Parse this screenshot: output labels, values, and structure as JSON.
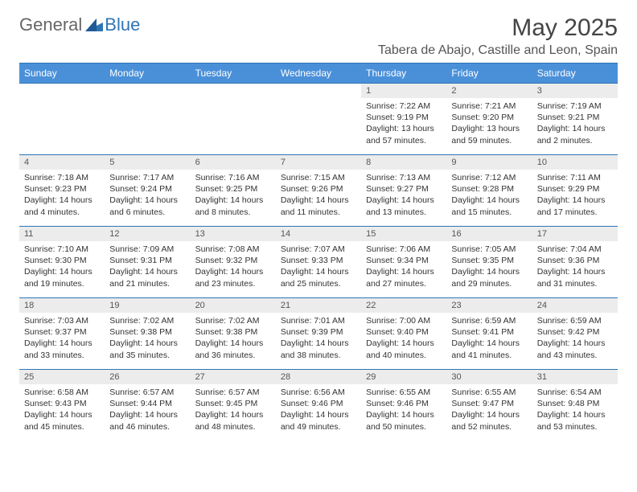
{
  "logo": {
    "general": "General",
    "blue": "Blue"
  },
  "title": "May 2025",
  "location": "Tabera de Abajo, Castille and Leon, Spain",
  "day_names": [
    "Sunday",
    "Monday",
    "Tuesday",
    "Wednesday",
    "Thursday",
    "Friday",
    "Saturday"
  ],
  "colors": {
    "header_bg": "#4a90d9",
    "border": "#2e75b6",
    "daynum_bg": "#ececec",
    "text": "#333333"
  },
  "weeks": [
    [
      null,
      null,
      null,
      null,
      {
        "n": "1",
        "sr": "Sunrise: 7:22 AM",
        "ss": "Sunset: 9:19 PM",
        "dl": "Daylight: 13 hours and 57 minutes."
      },
      {
        "n": "2",
        "sr": "Sunrise: 7:21 AM",
        "ss": "Sunset: 9:20 PM",
        "dl": "Daylight: 13 hours and 59 minutes."
      },
      {
        "n": "3",
        "sr": "Sunrise: 7:19 AM",
        "ss": "Sunset: 9:21 PM",
        "dl": "Daylight: 14 hours and 2 minutes."
      }
    ],
    [
      {
        "n": "4",
        "sr": "Sunrise: 7:18 AM",
        "ss": "Sunset: 9:23 PM",
        "dl": "Daylight: 14 hours and 4 minutes."
      },
      {
        "n": "5",
        "sr": "Sunrise: 7:17 AM",
        "ss": "Sunset: 9:24 PM",
        "dl": "Daylight: 14 hours and 6 minutes."
      },
      {
        "n": "6",
        "sr": "Sunrise: 7:16 AM",
        "ss": "Sunset: 9:25 PM",
        "dl": "Daylight: 14 hours and 8 minutes."
      },
      {
        "n": "7",
        "sr": "Sunrise: 7:15 AM",
        "ss": "Sunset: 9:26 PM",
        "dl": "Daylight: 14 hours and 11 minutes."
      },
      {
        "n": "8",
        "sr": "Sunrise: 7:13 AM",
        "ss": "Sunset: 9:27 PM",
        "dl": "Daylight: 14 hours and 13 minutes."
      },
      {
        "n": "9",
        "sr": "Sunrise: 7:12 AM",
        "ss": "Sunset: 9:28 PM",
        "dl": "Daylight: 14 hours and 15 minutes."
      },
      {
        "n": "10",
        "sr": "Sunrise: 7:11 AM",
        "ss": "Sunset: 9:29 PM",
        "dl": "Daylight: 14 hours and 17 minutes."
      }
    ],
    [
      {
        "n": "11",
        "sr": "Sunrise: 7:10 AM",
        "ss": "Sunset: 9:30 PM",
        "dl": "Daylight: 14 hours and 19 minutes."
      },
      {
        "n": "12",
        "sr": "Sunrise: 7:09 AM",
        "ss": "Sunset: 9:31 PM",
        "dl": "Daylight: 14 hours and 21 minutes."
      },
      {
        "n": "13",
        "sr": "Sunrise: 7:08 AM",
        "ss": "Sunset: 9:32 PM",
        "dl": "Daylight: 14 hours and 23 minutes."
      },
      {
        "n": "14",
        "sr": "Sunrise: 7:07 AM",
        "ss": "Sunset: 9:33 PM",
        "dl": "Daylight: 14 hours and 25 minutes."
      },
      {
        "n": "15",
        "sr": "Sunrise: 7:06 AM",
        "ss": "Sunset: 9:34 PM",
        "dl": "Daylight: 14 hours and 27 minutes."
      },
      {
        "n": "16",
        "sr": "Sunrise: 7:05 AM",
        "ss": "Sunset: 9:35 PM",
        "dl": "Daylight: 14 hours and 29 minutes."
      },
      {
        "n": "17",
        "sr": "Sunrise: 7:04 AM",
        "ss": "Sunset: 9:36 PM",
        "dl": "Daylight: 14 hours and 31 minutes."
      }
    ],
    [
      {
        "n": "18",
        "sr": "Sunrise: 7:03 AM",
        "ss": "Sunset: 9:37 PM",
        "dl": "Daylight: 14 hours and 33 minutes."
      },
      {
        "n": "19",
        "sr": "Sunrise: 7:02 AM",
        "ss": "Sunset: 9:38 PM",
        "dl": "Daylight: 14 hours and 35 minutes."
      },
      {
        "n": "20",
        "sr": "Sunrise: 7:02 AM",
        "ss": "Sunset: 9:38 PM",
        "dl": "Daylight: 14 hours and 36 minutes."
      },
      {
        "n": "21",
        "sr": "Sunrise: 7:01 AM",
        "ss": "Sunset: 9:39 PM",
        "dl": "Daylight: 14 hours and 38 minutes."
      },
      {
        "n": "22",
        "sr": "Sunrise: 7:00 AM",
        "ss": "Sunset: 9:40 PM",
        "dl": "Daylight: 14 hours and 40 minutes."
      },
      {
        "n": "23",
        "sr": "Sunrise: 6:59 AM",
        "ss": "Sunset: 9:41 PM",
        "dl": "Daylight: 14 hours and 41 minutes."
      },
      {
        "n": "24",
        "sr": "Sunrise: 6:59 AM",
        "ss": "Sunset: 9:42 PM",
        "dl": "Daylight: 14 hours and 43 minutes."
      }
    ],
    [
      {
        "n": "25",
        "sr": "Sunrise: 6:58 AM",
        "ss": "Sunset: 9:43 PM",
        "dl": "Daylight: 14 hours and 45 minutes."
      },
      {
        "n": "26",
        "sr": "Sunrise: 6:57 AM",
        "ss": "Sunset: 9:44 PM",
        "dl": "Daylight: 14 hours and 46 minutes."
      },
      {
        "n": "27",
        "sr": "Sunrise: 6:57 AM",
        "ss": "Sunset: 9:45 PM",
        "dl": "Daylight: 14 hours and 48 minutes."
      },
      {
        "n": "28",
        "sr": "Sunrise: 6:56 AM",
        "ss": "Sunset: 9:46 PM",
        "dl": "Daylight: 14 hours and 49 minutes."
      },
      {
        "n": "29",
        "sr": "Sunrise: 6:55 AM",
        "ss": "Sunset: 9:46 PM",
        "dl": "Daylight: 14 hours and 50 minutes."
      },
      {
        "n": "30",
        "sr": "Sunrise: 6:55 AM",
        "ss": "Sunset: 9:47 PM",
        "dl": "Daylight: 14 hours and 52 minutes."
      },
      {
        "n": "31",
        "sr": "Sunrise: 6:54 AM",
        "ss": "Sunset: 9:48 PM",
        "dl": "Daylight: 14 hours and 53 minutes."
      }
    ]
  ]
}
